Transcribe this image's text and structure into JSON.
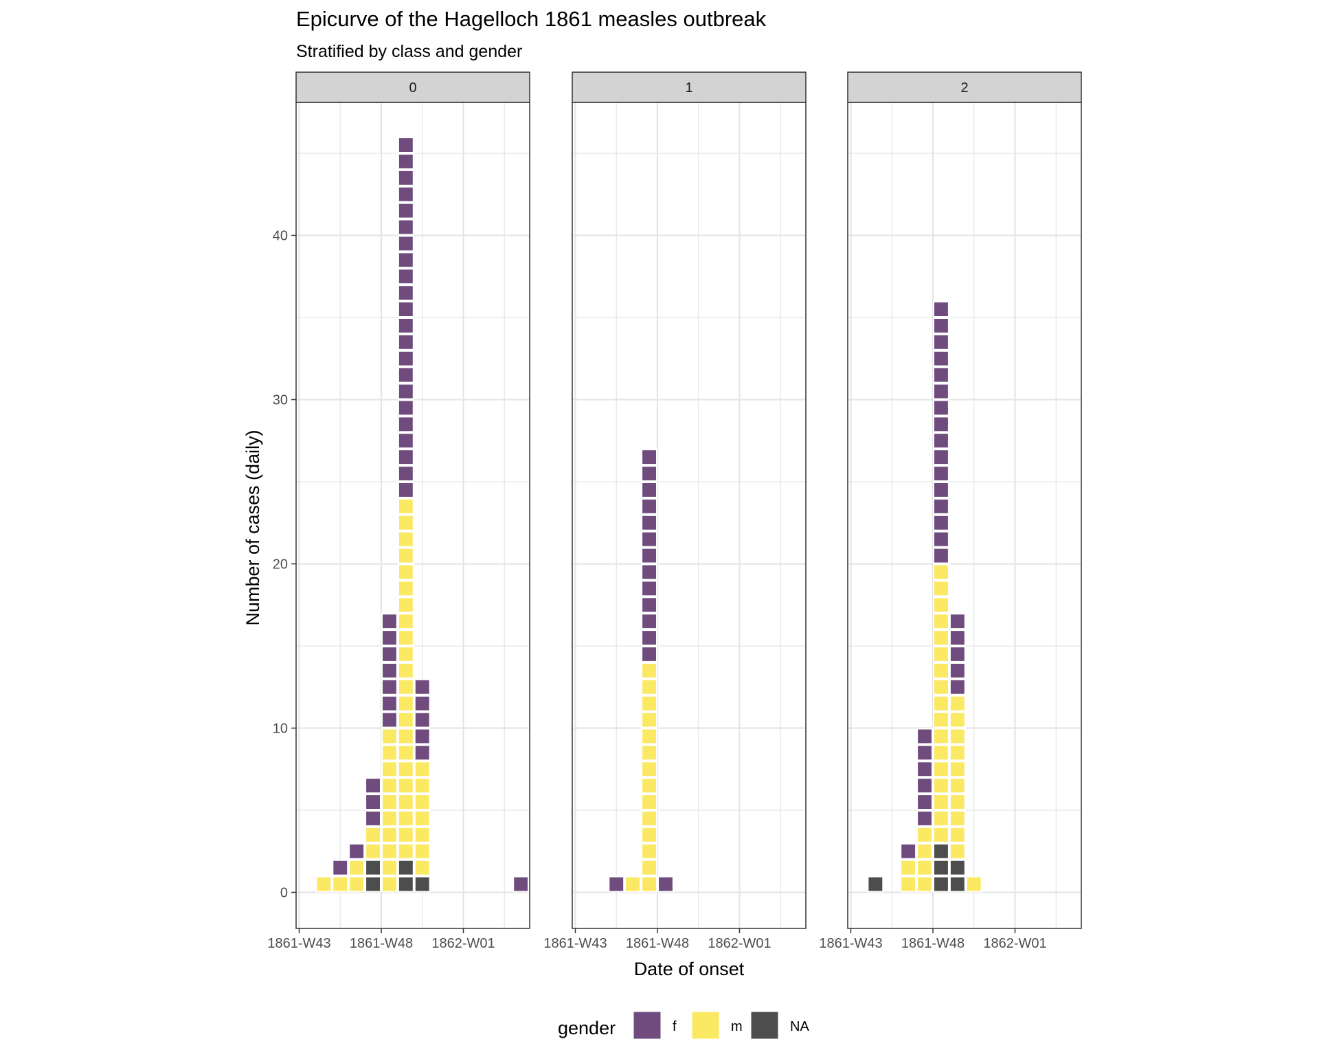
{
  "title": "Epicurve of the Hagelloch 1861 measles outbreak",
  "subtitle": "Stratified by class and gender",
  "colors": {
    "f": "#6f4c7d",
    "m": "#fbe964",
    "NA": "#4d4d4d",
    "strip_fill": "#d3d3d3",
    "grid": "#e5e5e5",
    "tile_border": "#ffffff"
  },
  "chart_data": {
    "type": "bar",
    "stacked": true,
    "unit": "one tile per case",
    "xlabel": "Date of onset",
    "ylabel": "Number of cases (daily)",
    "x_ticks": [
      "1861-W43",
      "1861-W48",
      "1862-W01"
    ],
    "x_range": [
      "1861-W43",
      "1862-W05"
    ],
    "y_ticks": [
      0,
      10,
      20,
      30,
      40
    ],
    "ylim": [
      -2,
      49
    ],
    "grid": true,
    "legend": {
      "title": "gender",
      "position": "bottom",
      "entries": [
        "f",
        "m",
        "NA"
      ]
    },
    "stack_order": [
      "NA",
      "m",
      "f"
    ],
    "facet_variable": "class",
    "facets": [
      {
        "label": "0",
        "bars": [
          {
            "week": "1861-W44",
            "NA": 0,
            "m": 1,
            "f": 0
          },
          {
            "week": "1861-W45",
            "NA": 0,
            "m": 1,
            "f": 1
          },
          {
            "week": "1861-W46",
            "NA": 0,
            "m": 2,
            "f": 1
          },
          {
            "week": "1861-W47",
            "NA": 2,
            "m": 2,
            "f": 3
          },
          {
            "week": "1861-W48",
            "NA": 0,
            "m": 10,
            "f": 7
          },
          {
            "week": "1861-W49",
            "NA": 2,
            "m": 22,
            "f": 22
          },
          {
            "week": "1861-W50",
            "NA": 1,
            "m": 7,
            "f": 5
          },
          {
            "week": "1862-W04",
            "NA": 0,
            "m": 0,
            "f": 1
          }
        ]
      },
      {
        "label": "1",
        "bars": [
          {
            "week": "1861-W45",
            "NA": 0,
            "m": 0,
            "f": 1
          },
          {
            "week": "1861-W46",
            "NA": 0,
            "m": 1,
            "f": 0
          },
          {
            "week": "1861-W47",
            "NA": 0,
            "m": 14,
            "f": 13
          },
          {
            "week": "1861-W48",
            "NA": 0,
            "m": 0,
            "f": 1
          }
        ]
      },
      {
        "label": "2",
        "bars": [
          {
            "week": "1861-W44",
            "NA": 1,
            "m": 0,
            "f": 0
          },
          {
            "week": "1861-W46",
            "NA": 0,
            "m": 2,
            "f": 1
          },
          {
            "week": "1861-W47",
            "NA": 0,
            "m": 4,
            "f": 6
          },
          {
            "week": "1861-W48",
            "NA": 3,
            "m": 17,
            "f": 16
          },
          {
            "week": "1861-W49",
            "NA": 2,
            "m": 10,
            "f": 5
          },
          {
            "week": "1861-W50",
            "NA": 0,
            "m": 1,
            "f": 0
          }
        ]
      }
    ]
  }
}
